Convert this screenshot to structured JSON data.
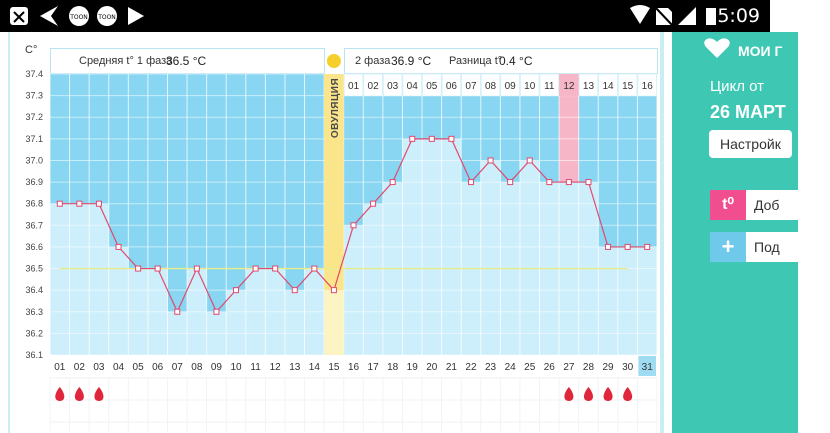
{
  "status_bar": {
    "time": "5:09"
  },
  "chart": {
    "y_unit": "C°",
    "phase1": {
      "label": "Средняя t° 1 фаза",
      "value": "36.5 °C"
    },
    "phase2": {
      "label": "2 фаза",
      "value": "36.9 °C"
    },
    "diff": {
      "label": "Разница t°",
      "value": "0.4 °C"
    },
    "ovulation_label": "ОВУЛЯЦИЯ",
    "cycle_day_labels": [
      "01",
      "02",
      "03",
      "04",
      "05",
      "06",
      "07",
      "08",
      "09",
      "10",
      "11",
      "12",
      "13",
      "14",
      "15",
      "16"
    ],
    "highlighted_cycle_day": "12",
    "highlighted_date": "31"
  },
  "right_panel": {
    "title": "МОИ Г",
    "cycle_label": "Цикл от",
    "cycle_date": "26 МАРТ",
    "settings_label": "Настройк",
    "add_temp_icon": "t⁰",
    "add_temp_label": "Доб",
    "add_more_icon": "+",
    "add_more_label": "Под",
    "colors": {
      "accent": "#3ec8b4",
      "pink": "#f04e8e",
      "light_blue": "#6ec9ea"
    }
  },
  "chart_data": {
    "type": "line",
    "x": [
      "01",
      "02",
      "03",
      "04",
      "05",
      "06",
      "07",
      "08",
      "09",
      "10",
      "11",
      "12",
      "13",
      "14",
      "15",
      "16",
      "17",
      "18",
      "19",
      "20",
      "21",
      "22",
      "23",
      "24",
      "25",
      "26",
      "27",
      "28",
      "29",
      "30",
      "31"
    ],
    "y": [
      36.8,
      36.8,
      36.8,
      36.6,
      36.5,
      36.5,
      36.3,
      36.5,
      36.3,
      36.4,
      36.5,
      36.5,
      36.4,
      36.5,
      36.4,
      36.7,
      36.8,
      36.9,
      37.1,
      37.1,
      37.1,
      36.9,
      37.0,
      36.9,
      37.0,
      36.9,
      36.9,
      36.9,
      36.6,
      36.6,
      36.6
    ],
    "ylim": [
      36.1,
      37.4
    ],
    "yticks": [
      36.1,
      36.2,
      36.3,
      36.4,
      36.5,
      36.6,
      36.7,
      36.8,
      36.9,
      37.0,
      37.1,
      37.2,
      37.3,
      37.4
    ],
    "ylabel": "C°",
    "ovulation_date": "15",
    "coverline": 36.5,
    "menstruation_dates": [
      "01",
      "02",
      "03",
      "27",
      "28",
      "29",
      "30"
    ],
    "grid": true
  }
}
